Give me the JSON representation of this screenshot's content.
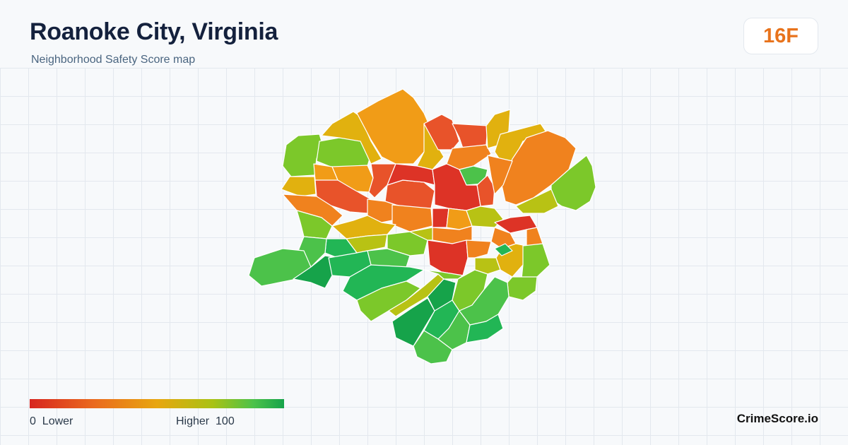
{
  "header": {
    "title": "Roanoke City, Virginia",
    "subtitle": "Neighborhood Safety Score map"
  },
  "grade": {
    "score": "16",
    "letter": "F",
    "color": "#e8731c"
  },
  "legend": {
    "low_text": "0  Lower",
    "high_text": "Higher  100",
    "colors": [
      "#d7261f",
      "#ea6a1e",
      "#e8a60f",
      "#a9c214",
      "#4cc24a",
      "#16a34a"
    ]
  },
  "brand": "CrimeScore.io",
  "map": {
    "region": "Roanoke City, Virginia",
    "palette": {
      "red": "#dd3326",
      "red_orange": "#e8532a",
      "orange": "#f0821e",
      "orange_yellow": "#f19c17",
      "yellow": "#e1b10f",
      "yellow_green": "#b8c214",
      "lime": "#7cc82a",
      "light_green": "#4cc24a",
      "green": "#22b655",
      "dark_green": "#16a34a"
    }
  }
}
